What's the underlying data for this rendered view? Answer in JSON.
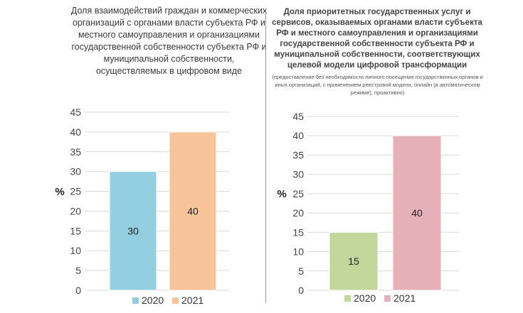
{
  "chart_data": [
    {
      "type": "bar",
      "title": "Доля взаимодействий  граждан и коммерческих организаций с органами власти субъекта РФ и местного  самоуправления и организациями  государственной собственности субъекта РФ и муниципальной собственности,  осуществляемых в цифровом виде",
      "ylabel": "%",
      "ylim": [
        0,
        45
      ],
      "yticks": [
        "0",
        "5",
        "10",
        "15",
        "20",
        "25",
        "30",
        "35",
        "40",
        "45"
      ],
      "categories": [
        "2020",
        "2021"
      ],
      "values": [
        30,
        40
      ],
      "colors": [
        "#93cfe0",
        "#f8c59a"
      ],
      "grid": true,
      "legend": "bottom"
    },
    {
      "type": "bar",
      "title": "Доля приоритетных государственных услуг и сервисов, оказываемых органами власти субъекта РФ и местного самоуправления и организациями государственной собственности субъекта РФ и муниципальной собственности, соответствующих целевой модели цифровой трансформации",
      "subtitle": "(предоставление без необходимости личного посещения государственных органов и иных организаций, с применением реестровой модели, онлайн (в автоматическом режиме), проактивно)",
      "ylabel": "%",
      "ylim": [
        0,
        45
      ],
      "yticks": [
        "0",
        "5",
        "10",
        "15",
        "20",
        "25",
        "30",
        "35",
        "40",
        "45"
      ],
      "categories": [
        "2020",
        "2021"
      ],
      "values": [
        15,
        40
      ],
      "colors": [
        "#c3d69b",
        "#e6b0b8"
      ],
      "grid": true,
      "legend": "bottom"
    }
  ]
}
